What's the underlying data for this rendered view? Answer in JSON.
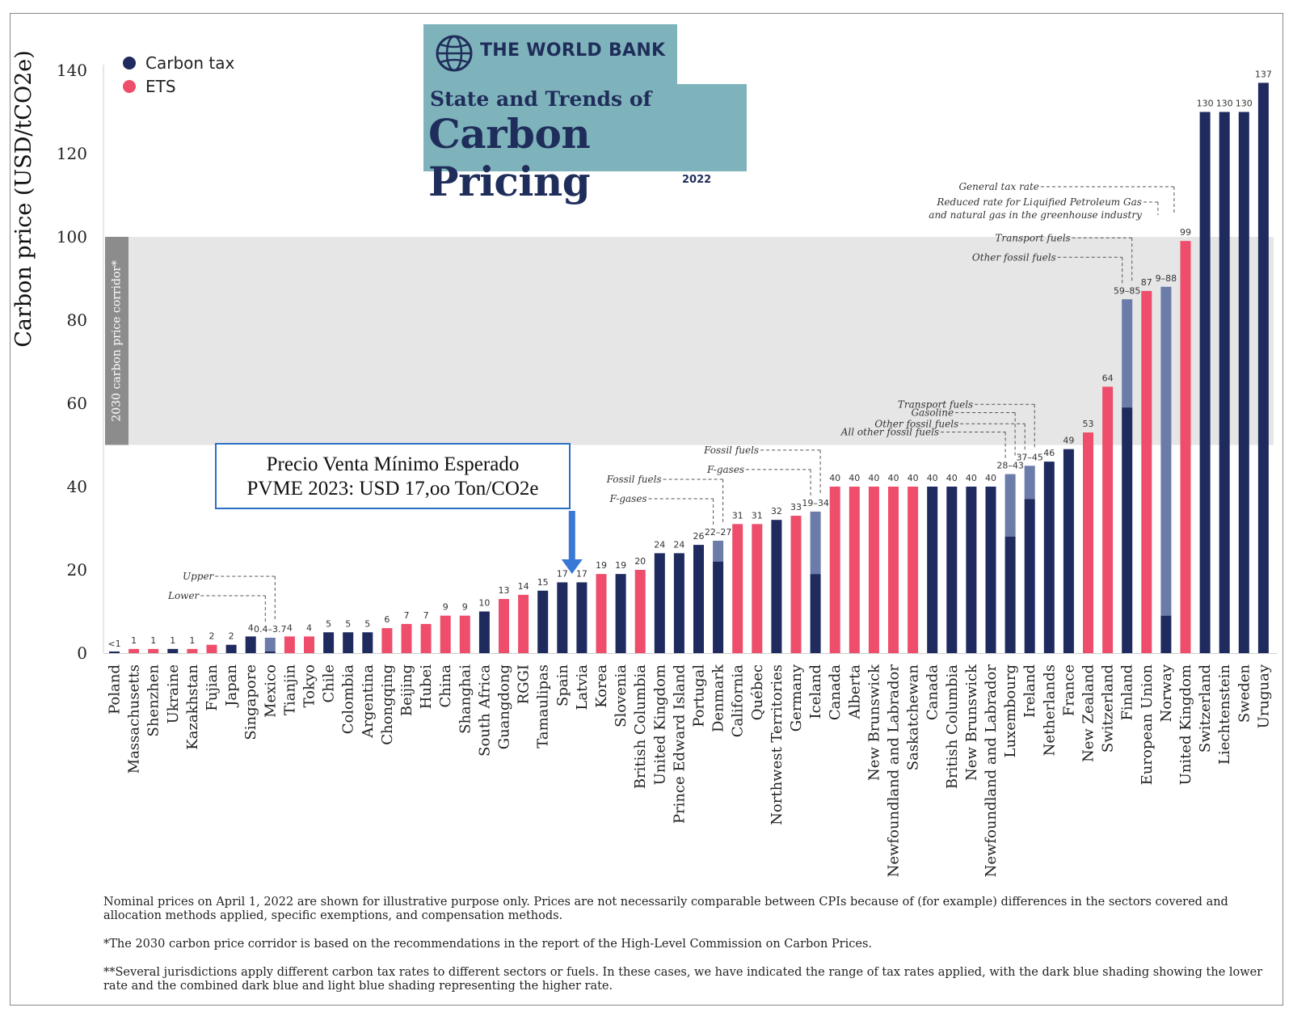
{
  "branding": {
    "org": "THE WORLD BANK",
    "subtitle": "State and Trends of",
    "title": "Carbon Pricing",
    "year": "2022"
  },
  "callout": {
    "line1": "Precio Venta Mínimo Esperado",
    "line2": "PVME 2023: USD 17,oo Ton/CO2e"
  },
  "colors": {
    "carbon_tax": "#1f2a5e",
    "ets": "#ee4d6b",
    "higher_rate": "#6b7baa",
    "corridor": "#e6e6e6",
    "corridor_label_bg": "#8c8c8c",
    "callout_border": "#2b6fc3",
    "arrow": "#3a78d6"
  },
  "chart_data": {
    "type": "bar",
    "ylabel": "Carbon price (USD/tCO2e)",
    "ylim": [
      0,
      140
    ],
    "yticks": [
      0,
      20,
      40,
      60,
      80,
      100,
      120,
      140
    ],
    "legend": {
      "position": "top-left",
      "entries": [
        "Carbon tax",
        "ETS"
      ]
    },
    "corridor": {
      "from": 50,
      "to": 100,
      "label": "2030 carbon price corridor*"
    },
    "categories": [
      "Poland",
      "Massachusetts",
      "Shenzhen",
      "Ukraine",
      "Kazakhstan",
      "Fujian",
      "Japan",
      "Singapore",
      "Mexico",
      "Tianjin",
      "Tokyo",
      "Chile",
      "Colombia",
      "Argentina",
      "Chongqing",
      "Beijing",
      "Hubei",
      "China",
      "Shanghai",
      "South Africa",
      "Guangdong",
      "RGGI",
      "Tamaulipas",
      "Spain",
      "Latvia",
      "Korea",
      "Slovenia",
      "British Columbia",
      "United Kingdom",
      "Prince Edward Island",
      "Portugal",
      "Denmark",
      "California",
      "Québec",
      "Northwest Territories",
      "Germany",
      "Iceland",
      "Canada",
      "Alberta",
      "New Brunswick",
      "Newfoundland and Labrador",
      "Saskatchewan",
      "Canada",
      "British Columbia",
      "New Brunswick",
      "Newfoundland and Labrador",
      "Luxembourg",
      "Ireland",
      "Netherlands",
      "France",
      "New Zealand",
      "Switzerland",
      "Finland",
      "European Union",
      "Norway",
      "United Kingdom",
      "Switzerland",
      "Liechtenstein",
      "Sweden",
      "Uruguay"
    ],
    "series": [
      {
        "name": "Carbon tax",
        "type_codes": [
          "T",
          "E",
          "E",
          "T",
          "E",
          "E",
          "T",
          "T",
          "T",
          "E",
          "E",
          "T",
          "T",
          "T",
          "E",
          "E",
          "E",
          "E",
          "E",
          "T",
          "E",
          "E",
          "T",
          "T",
          "T",
          "E",
          "T",
          "E",
          "T",
          "T",
          "T",
          "T",
          "E",
          "E",
          "T",
          "E",
          "T",
          "E",
          "E",
          "E",
          "E",
          "E",
          "T",
          "T",
          "T",
          "T",
          "T",
          "T",
          "T",
          "T",
          "E",
          "E",
          "T",
          "E",
          "T",
          "E",
          "T",
          "T",
          "T",
          "T"
        ]
      }
    ],
    "values": [
      0.2,
      1,
      1,
      1,
      1,
      2,
      2,
      4,
      3.7,
      4,
      4,
      5,
      5,
      5,
      6,
      7,
      7,
      9,
      9,
      10,
      13,
      14,
      15,
      17,
      17,
      19,
      19,
      20,
      24,
      24,
      26,
      27,
      31,
      31,
      32,
      33,
      34,
      40,
      40,
      40,
      40,
      40,
      40,
      40,
      40,
      40,
      43,
      45,
      46,
      49,
      53,
      64,
      85,
      87,
      88,
      99,
      130,
      130,
      130,
      137
    ],
    "lower_values": [
      null,
      null,
      null,
      null,
      null,
      null,
      null,
      null,
      0.4,
      null,
      null,
      null,
      null,
      null,
      null,
      null,
      null,
      null,
      null,
      null,
      null,
      null,
      null,
      null,
      null,
      null,
      null,
      null,
      null,
      null,
      null,
      22,
      null,
      null,
      null,
      null,
      19,
      null,
      null,
      null,
      null,
      null,
      null,
      null,
      null,
      null,
      28,
      37,
      null,
      null,
      null,
      null,
      59,
      null,
      9,
      null,
      null,
      null,
      null,
      null
    ],
    "value_labels": [
      "<1",
      "1",
      "1",
      "1",
      "1",
      "2",
      "2",
      "4",
      "0.4–3.7",
      "4",
      "4",
      "5",
      "5",
      "5",
      "6",
      "7",
      "7",
      "9",
      "9",
      "10",
      "13",
      "14",
      "15",
      "17",
      "17",
      "19",
      "19",
      "20",
      "24",
      "24",
      "26",
      "22–27",
      "31",
      "31",
      "32",
      "33",
      "19–34",
      "40",
      "40",
      "40",
      "40",
      "40",
      "40",
      "40",
      "40",
      "40",
      "28–43",
      "37–45",
      "46",
      "49",
      "53",
      "64",
      "59–85",
      "87",
      "9–88",
      "99",
      "130",
      "130",
      "130",
      "137"
    ],
    "annotations": [
      {
        "bar": 8,
        "upper_label": "Upper",
        "lower_label": "Lower"
      },
      {
        "bar": 31,
        "upper_label": "Fossil fuels",
        "lower_label": "F-gases"
      },
      {
        "bar": 36,
        "upper_label": "Fossil fuels",
        "lower_label": "F-gases"
      },
      {
        "bar": 46,
        "upper_label": "Gasoline",
        "lower_label": "All other fossil fuels"
      },
      {
        "bar": 47,
        "upper_label": "Transport fuels",
        "lower_label": "Other fossil fuels"
      },
      {
        "bar": 52,
        "upper_label": "Transport fuels",
        "lower_label": "Other fossil fuels"
      },
      {
        "bar": 54,
        "upper_label": "General tax rate",
        "lower_label": "Reduced rate for Liquified Petroleum Gas and natural gas in the greenhouse industry",
        "lower_label_line1": "Reduced rate for Liquified Petroleum Gas",
        "lower_label_line2": "and natural gas in the greenhouse industry"
      }
    ],
    "callout_bar": 23
  },
  "notes": [
    "Nominal prices on April 1, 2022 are shown for illustrative purpose only. Prices are not necessarily comparable between CPIs because of (for example) differences in the sectors covered and allocation methods applied, specific exemptions, and compensation methods.",
    "*The 2030 carbon price corridor is based on the recommendations in the report of the High-Level Commission on Carbon Prices.",
    "**Several jurisdictions apply different carbon tax rates to different sectors or fuels. In these cases, we have indicated the range of tax rates applied, with the dark blue shading showing the lower rate and the combined dark blue and light blue shading representing the higher rate."
  ]
}
